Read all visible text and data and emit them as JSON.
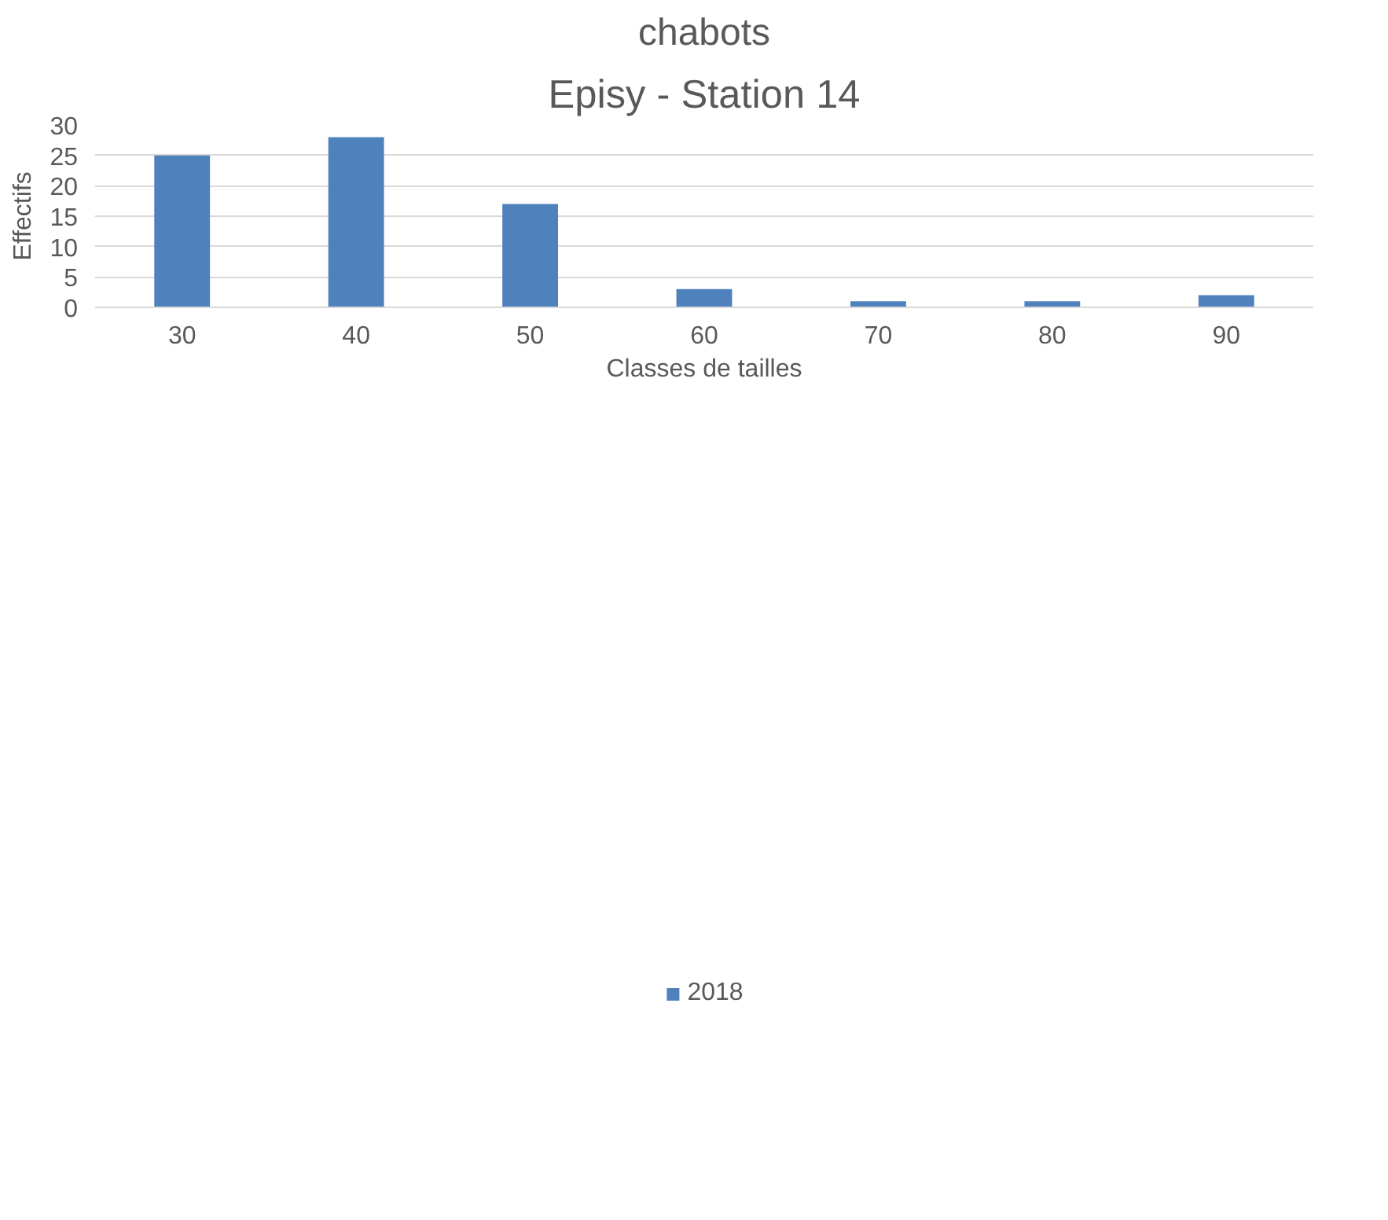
{
  "chart_data": {
    "type": "bar",
    "title": "chabots",
    "subtitle": "Episy - Station 14",
    "xlabel": "Classes de tailles",
    "ylabel": "Effectifs",
    "categories": [
      "30",
      "40",
      "50",
      "60",
      "70",
      "80",
      "90"
    ],
    "series": [
      {
        "name": "2018",
        "color": "#4f81bd",
        "values": [
          25,
          28,
          17,
          3,
          1,
          1,
          2
        ]
      }
    ],
    "ylim": [
      0,
      30
    ],
    "yticks": [
      0,
      5,
      10,
      15,
      20,
      25,
      30
    ],
    "grid": "y",
    "legend": "bottom"
  }
}
